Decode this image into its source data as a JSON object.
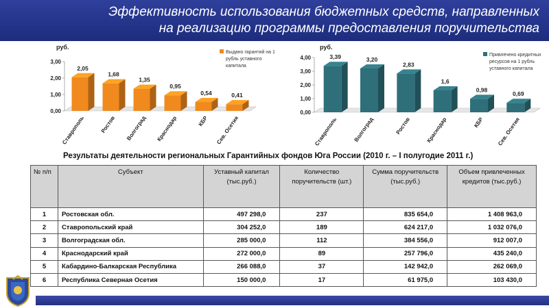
{
  "header": {
    "line1": "Эффективность использования бюджетных средств, направленных",
    "line2": "на реализацию программы предоставления поручительства"
  },
  "colors": {
    "header_bg": "#243489",
    "left_bar": "#f08a1e",
    "right_bar": "#2f6f7a"
  },
  "chart_data": [
    {
      "type": "bar",
      "unit_label": "руб.",
      "categories": [
        "Ставрополь",
        "Ростов",
        "Волгоград",
        "Краснодар",
        "КБР",
        "Сев. Осетия"
      ],
      "values": [
        2.05,
        1.68,
        1.35,
        0.95,
        0.54,
        0.41
      ],
      "value_labels": [
        "2,05",
        "1,68",
        "1,35",
        "0,95",
        "0,54",
        "0,41"
      ],
      "yticks": [
        "0,00",
        "1,00",
        "2,00",
        "3,00"
      ],
      "ylim": [
        0,
        3
      ],
      "legend": "Выдано гарантий на 1 рубль уставного капитала",
      "legend_lines": [
        "Выдано гарантий на 1",
        "рубль уставного",
        "капитала"
      ],
      "legend_position": "top-right"
    },
    {
      "type": "bar",
      "unit_label": "руб.",
      "categories": [
        "Ставрополь",
        "Волгоград",
        "Ростов",
        "Краснодар",
        "КБР",
        "Сев. Осетия"
      ],
      "values": [
        3.39,
        3.2,
        2.83,
        1.6,
        0.98,
        0.69
      ],
      "value_labels": [
        "3,39",
        "3,20",
        "2,83",
        "1,6",
        "0,98",
        "0,69"
      ],
      "yticks": [
        "0,00",
        "1,00",
        "2,00",
        "3,00",
        "4,00"
      ],
      "ylim": [
        0,
        4
      ],
      "legend": "Привлечено кредитных ресурсов на 1 рубль уставного капитала",
      "legend_lines": [
        "Привлечено кредитных",
        "ресурсов на 1 рубль",
        "уставного капитала"
      ],
      "legend_position": "top-right"
    }
  ],
  "subtitle": "Результаты деятельности региональных Гарантийных фондов Юга России  (2010 г. – I полугодие 2011 г.)",
  "table": {
    "headers": {
      "num": "№ п/п",
      "subject": "Субъект",
      "capital": "Уставный капитал (тыс.руб.)",
      "count": "Количество поручительств (шт.)",
      "sum": "Сумма поручительств (тыс.руб.)",
      "credit": "Объем привлеченных кредитов (тыс.руб.)"
    },
    "rows": [
      {
        "num": "1",
        "subject": "Ростовская обл.",
        "capital": "497 298,0",
        "count": "237",
        "sum": "835 654,0",
        "credit": "1 408 963,0"
      },
      {
        "num": "2",
        "subject": "Ставропольский край",
        "capital": "304 252,0",
        "count": "189",
        "sum": "624 217,0",
        "credit": "1 032 076,0"
      },
      {
        "num": "3",
        "subject": "Волгоградская обл.",
        "capital": "285 000,0",
        "count": "112",
        "sum": "384 556,0",
        "credit": "912 007,0"
      },
      {
        "num": "4",
        "subject": "Краснодарский край",
        "capital": "272 000,0",
        "count": "89",
        "sum": "257 796,0",
        "credit": "435 240,0"
      },
      {
        "num": "5",
        "subject": "Кабардино-Балкарская Республика",
        "capital": "266 088,0",
        "count": "37",
        "sum": "142 942,0",
        "credit": "262 069,0"
      },
      {
        "num": "6",
        "subject": "Республика Северная Осетия",
        "capital": "150 000,0",
        "count": "17",
        "sum": "61 975,0",
        "credit": "103 430,0"
      }
    ]
  }
}
